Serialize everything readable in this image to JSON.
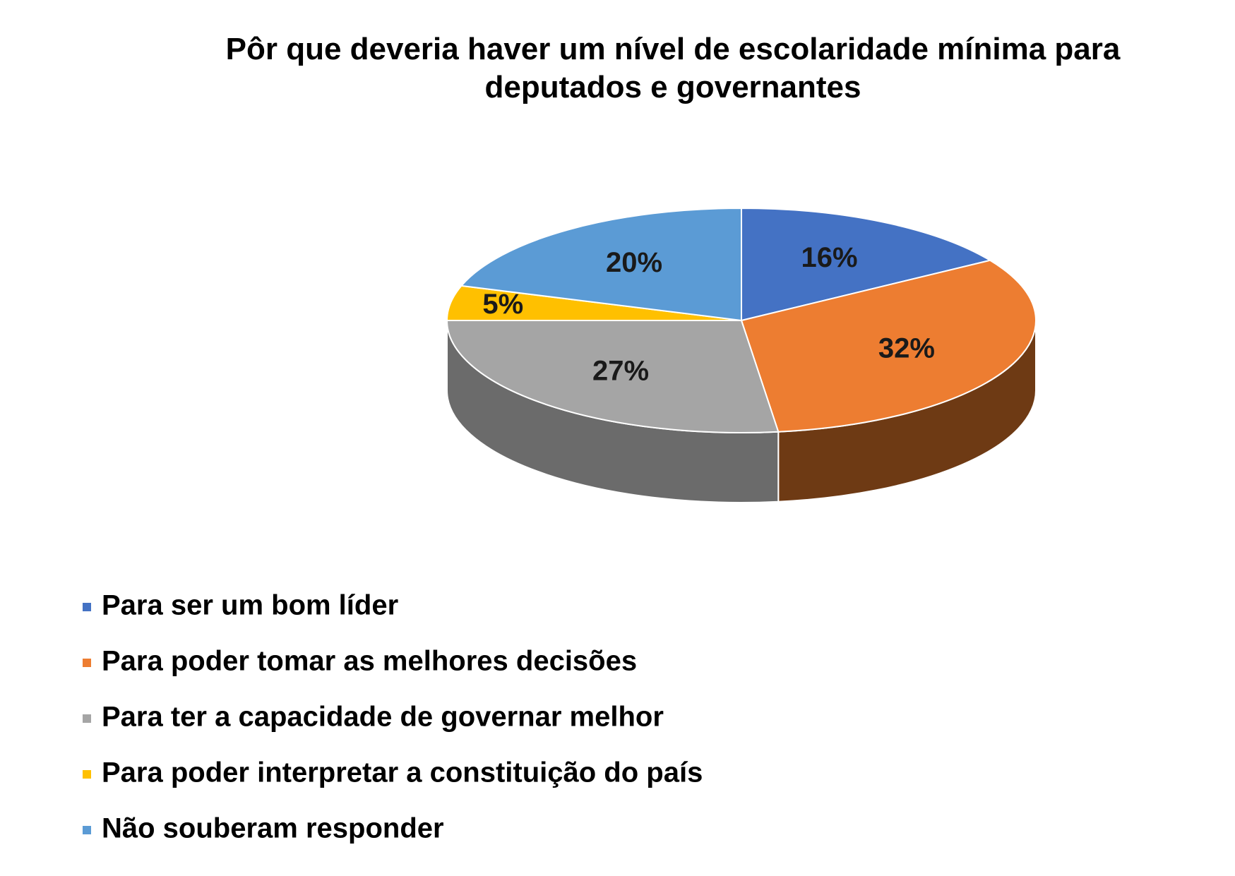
{
  "chart_data": {
    "type": "pie3d",
    "title": "Pôr que deveria haver um nível de escolaridade mínima para deputados e governantes",
    "categories": [
      "Para ser um bom líder",
      "Para poder tomar as melhores decisões",
      "Para ter a capacidade de governar melhor",
      "Para poder interpretar a constituição do país",
      "Não souberam responder"
    ],
    "values": [
      16,
      32,
      27,
      5,
      20
    ],
    "value_labels": [
      "16%",
      "32%",
      "27%",
      "5%",
      "20%"
    ],
    "colors": [
      "#4472c4",
      "#ed7d31",
      "#a5a5a5",
      "#ffc000",
      "#5b9bd5"
    ],
    "side_colors": [
      "#2e4e87",
      "#6e3a14",
      "#6b6b6b",
      "#a67d00",
      "#3c6a93"
    ],
    "legend": "bottom"
  }
}
